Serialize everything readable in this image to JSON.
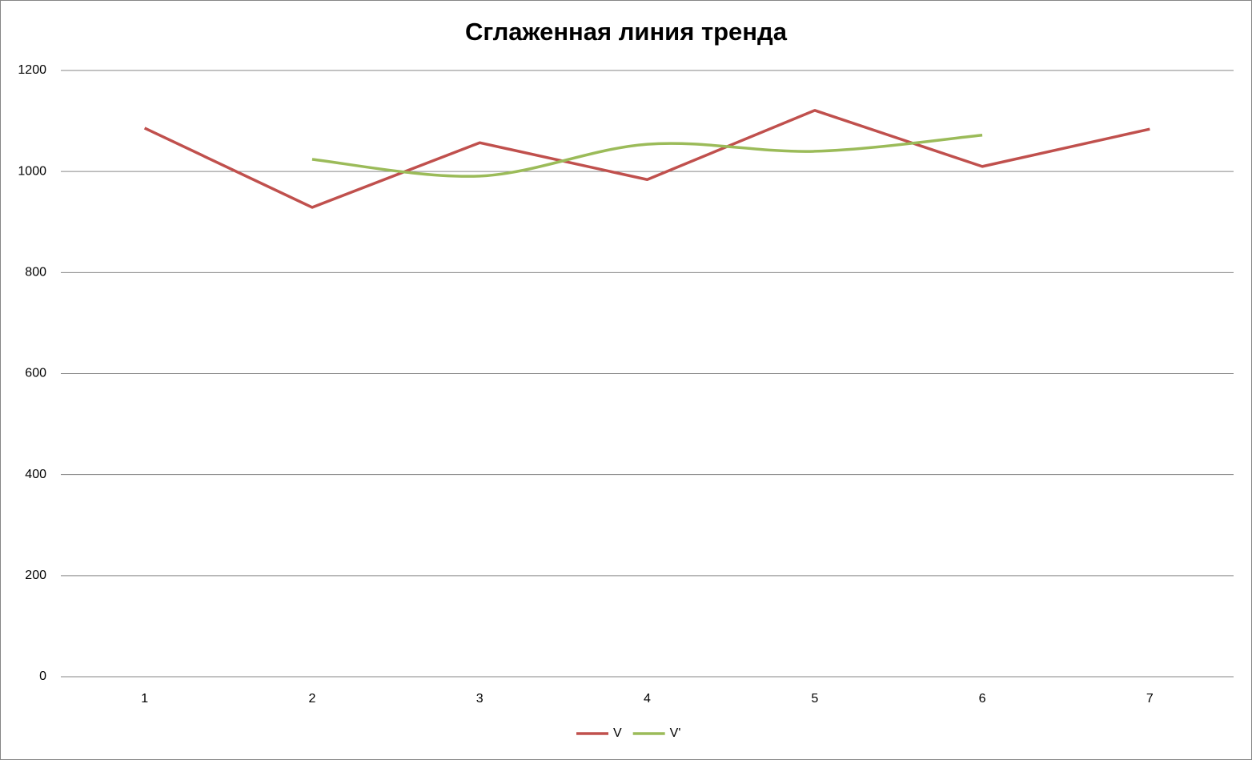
{
  "chart_data": {
    "type": "line",
    "title": "Сглаженная линия тренда",
    "categories": [
      "1",
      "2",
      "3",
      "4",
      "5",
      "6",
      "7"
    ],
    "series": [
      {
        "name": "V",
        "color": "#c0504d",
        "smooth": false,
        "values": [
          1086,
          929,
          1057,
          984,
          1121,
          1010,
          1084
        ]
      },
      {
        "name": "V'",
        "color": "#9bbb59",
        "smooth": true,
        "values": [
          null,
          1024,
          991,
          1054,
          1040,
          1072,
          null
        ]
      }
    ],
    "ylim": [
      0,
      1200
    ],
    "yticks": [
      0,
      200,
      400,
      600,
      800,
      1000,
      1200
    ],
    "grid": true,
    "legend": "bottom"
  }
}
